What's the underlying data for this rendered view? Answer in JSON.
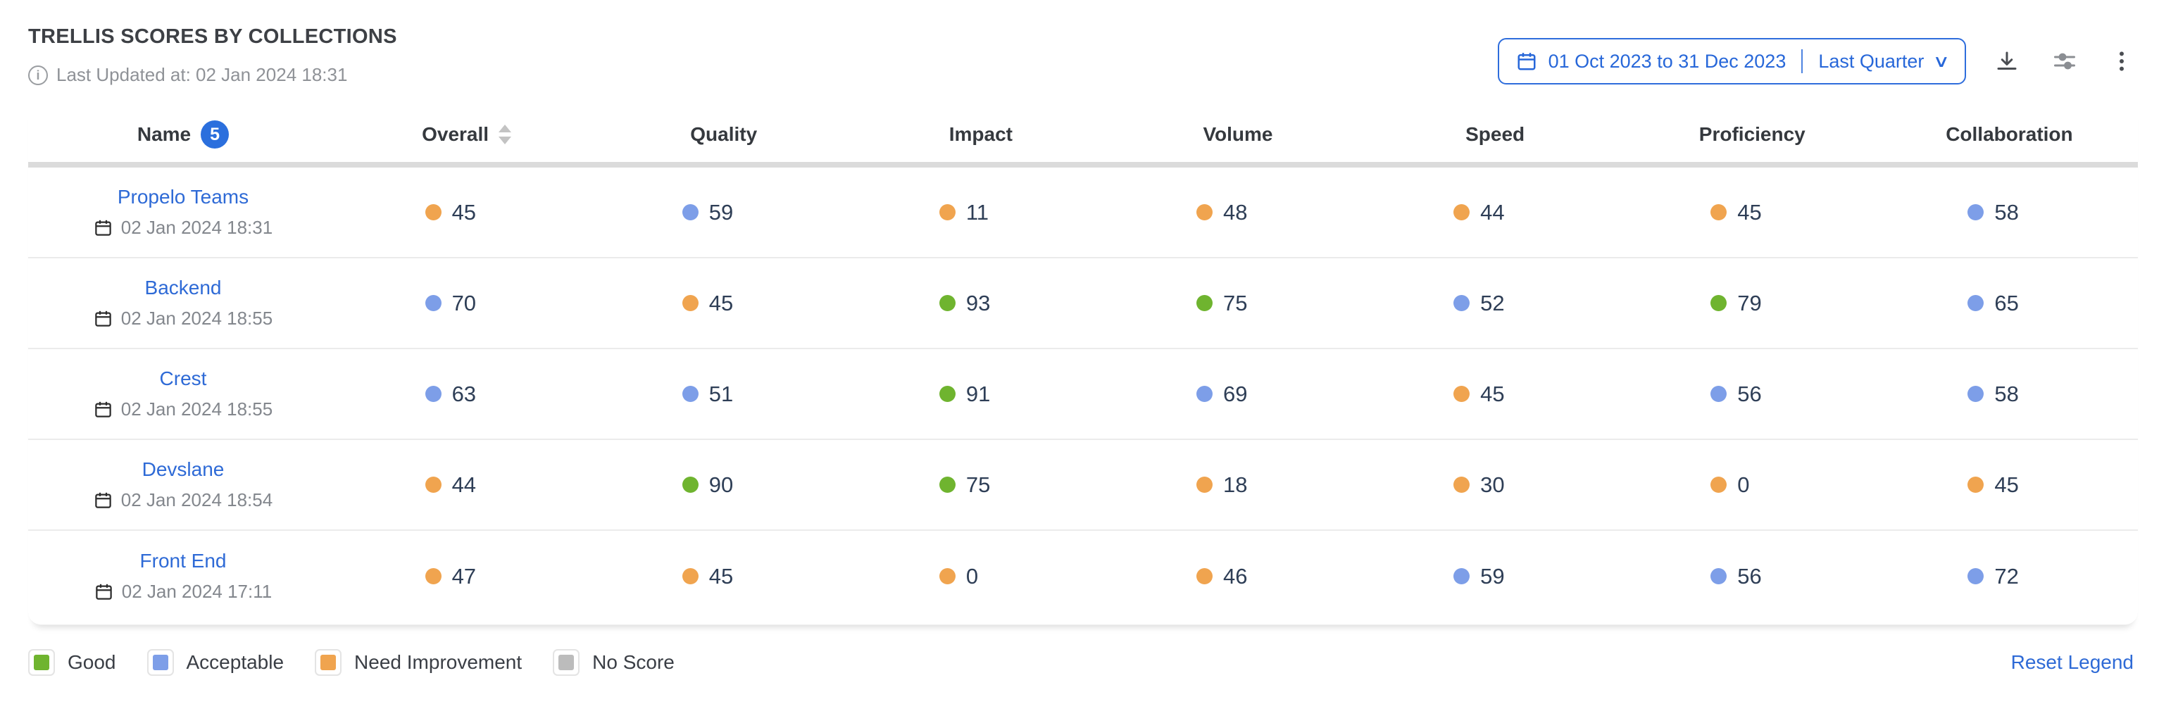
{
  "header": {
    "title": "TRELLIS SCORES BY COLLECTIONS",
    "last_updated": "Last Updated at: 02 Jan 2024 18:31",
    "date_range": "01 Oct 2023 to 31 Dec 2023",
    "date_preset": "Last Quarter"
  },
  "table": {
    "row_count_badge": "5",
    "columns": [
      {
        "label": "Name",
        "sortable": false
      },
      {
        "label": "Overall",
        "sortable": true
      },
      {
        "label": "Quality",
        "sortable": false
      },
      {
        "label": "Impact",
        "sortable": false
      },
      {
        "label": "Volume",
        "sortable": false
      },
      {
        "label": "Speed",
        "sortable": false
      },
      {
        "label": "Proficiency",
        "sortable": false
      },
      {
        "label": "Collaboration",
        "sortable": false
      }
    ],
    "rows": [
      {
        "name": "Propelo Teams",
        "updated": "02 Jan 2024 18:31",
        "scores": [
          {
            "value": 45,
            "status": "need_improvement"
          },
          {
            "value": 59,
            "status": "acceptable"
          },
          {
            "value": 11,
            "status": "need_improvement"
          },
          {
            "value": 48,
            "status": "need_improvement"
          },
          {
            "value": 44,
            "status": "need_improvement"
          },
          {
            "value": 45,
            "status": "need_improvement"
          },
          {
            "value": 58,
            "status": "acceptable"
          }
        ]
      },
      {
        "name": "Backend",
        "updated": "02 Jan 2024 18:55",
        "scores": [
          {
            "value": 70,
            "status": "acceptable"
          },
          {
            "value": 45,
            "status": "need_improvement"
          },
          {
            "value": 93,
            "status": "good"
          },
          {
            "value": 75,
            "status": "good"
          },
          {
            "value": 52,
            "status": "acceptable"
          },
          {
            "value": 79,
            "status": "good"
          },
          {
            "value": 65,
            "status": "acceptable"
          }
        ]
      },
      {
        "name": "Crest",
        "updated": "02 Jan 2024 18:55",
        "scores": [
          {
            "value": 63,
            "status": "acceptable"
          },
          {
            "value": 51,
            "status": "acceptable"
          },
          {
            "value": 91,
            "status": "good"
          },
          {
            "value": 69,
            "status": "acceptable"
          },
          {
            "value": 45,
            "status": "need_improvement"
          },
          {
            "value": 56,
            "status": "acceptable"
          },
          {
            "value": 58,
            "status": "acceptable"
          }
        ]
      },
      {
        "name": "Devslane",
        "updated": "02 Jan 2024 18:54",
        "scores": [
          {
            "value": 44,
            "status": "need_improvement"
          },
          {
            "value": 90,
            "status": "good"
          },
          {
            "value": 75,
            "status": "good"
          },
          {
            "value": 18,
            "status": "need_improvement"
          },
          {
            "value": 30,
            "status": "need_improvement"
          },
          {
            "value": 0,
            "status": "need_improvement"
          },
          {
            "value": 45,
            "status": "need_improvement"
          }
        ]
      },
      {
        "name": "Front End",
        "updated": "02 Jan 2024 17:11",
        "scores": [
          {
            "value": 47,
            "status": "need_improvement"
          },
          {
            "value": 45,
            "status": "need_improvement"
          },
          {
            "value": 0,
            "status": "need_improvement"
          },
          {
            "value": 46,
            "status": "need_improvement"
          },
          {
            "value": 59,
            "status": "acceptable"
          },
          {
            "value": 56,
            "status": "acceptable"
          },
          {
            "value": 72,
            "status": "acceptable"
          }
        ]
      }
    ]
  },
  "status_colors": {
    "good": "#6fb42f",
    "acceptable": "#7d9ee8",
    "need_improvement": "#f0a44f",
    "no_score": "#bcbcbc"
  },
  "legend": {
    "items": [
      {
        "label": "Good",
        "status": "good"
      },
      {
        "label": "Acceptable",
        "status": "acceptable"
      },
      {
        "label": "Need Improvement",
        "status": "need_improvement"
      },
      {
        "label": "No Score",
        "status": "no_score"
      }
    ],
    "reset_label": "Reset Legend"
  },
  "accent_color": "#2e6ddc"
}
